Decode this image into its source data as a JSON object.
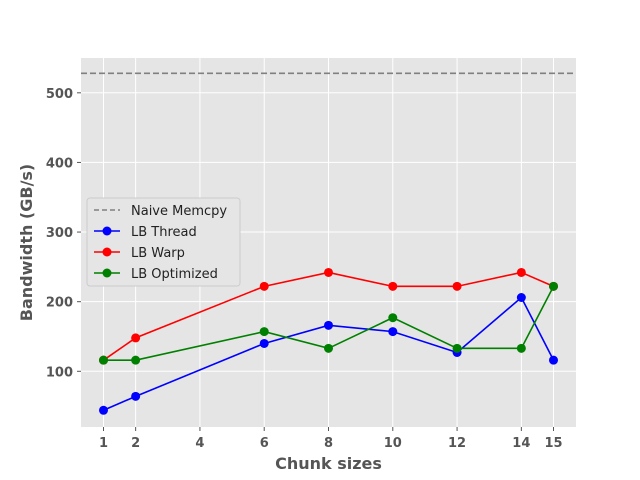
{
  "chart_data": {
    "type": "line",
    "title": "",
    "xlabel": "Chunk sizes",
    "ylabel": "Bandwidth (GB/s)",
    "xlim": [
      0.3,
      15.7
    ],
    "ylim": [
      20,
      550
    ],
    "xticks": [
      1,
      2,
      4,
      6,
      8,
      10,
      12,
      14,
      15
    ],
    "yticks": [
      100,
      200,
      300,
      400,
      500
    ],
    "grid": true,
    "legend_position": "center-left",
    "background": "#e5e5e5",
    "reference_lines": [
      {
        "name": "Naive Memcpy",
        "y": 528,
        "color": "#808080",
        "style": "dashed"
      }
    ],
    "series": [
      {
        "name": "LB Thread",
        "color": "#0000ff",
        "x": [
          1,
          2,
          6,
          8,
          10,
          12,
          14,
          15
        ],
        "values": [
          44,
          64,
          140,
          166,
          157,
          127,
          206,
          116
        ]
      },
      {
        "name": "LB Warp",
        "color": "#ff0000",
        "x": [
          1,
          2,
          6,
          8,
          10,
          12,
          14,
          15
        ],
        "values": [
          116,
          148,
          222,
          242,
          222,
          222,
          242,
          222
        ]
      },
      {
        "name": "LB Optimized",
        "color": "#008000",
        "x": [
          1,
          2,
          6,
          8,
          10,
          12,
          14,
          15
        ],
        "values": [
          116,
          116,
          157,
          133,
          177,
          133,
          133,
          222
        ]
      }
    ]
  }
}
